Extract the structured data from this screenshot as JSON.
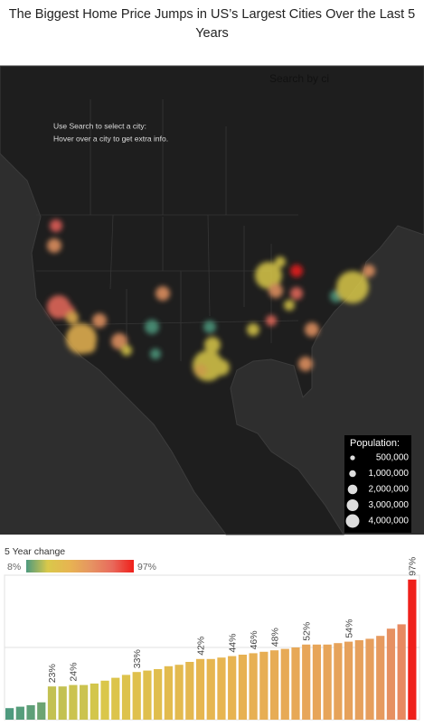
{
  "title": "The Biggest Home Price Jumps in US’s Largest Cities Over the Last 5 Years",
  "map": {
    "search_placeholder": "Search by ci",
    "instructions": [
      "Use Search to select a city:",
      "Hover over a city to get extra info."
    ],
    "population_legend": {
      "title": "Population:",
      "items": [
        {
          "value": 500000,
          "label": "500,000"
        },
        {
          "value": 1000000,
          "label": "1,000,000"
        },
        {
          "value": 2000000,
          "label": "2,000,000"
        },
        {
          "value": 3000000,
          "label": "3,000,000"
        },
        {
          "value": 4000000,
          "label": "4,000,000"
        }
      ]
    }
  },
  "chart_data": {
    "type": "bar",
    "legend_title": "5 Year change",
    "color_scale": {
      "colors": [
        "#4e9a7e",
        "#d9c84a",
        "#e7b451",
        "#e69462",
        "#e86a5c",
        "#ef1f1a"
      ],
      "min": {
        "value": 8,
        "label": "8%"
      },
      "max": {
        "value": 97,
        "label": "97%"
      }
    },
    "values": [
      8,
      9,
      10,
      12,
      23,
      23,
      24,
      24,
      25,
      27,
      29,
      31,
      33,
      34,
      35,
      37,
      38,
      40,
      42,
      42,
      43,
      44,
      45,
      46,
      47,
      48,
      49,
      50,
      52,
      52,
      52,
      53,
      54,
      55,
      56,
      58,
      63,
      66,
      97
    ],
    "value_labels": [
      null,
      null,
      null,
      null,
      "23%",
      null,
      "24%",
      null,
      null,
      null,
      null,
      null,
      "33%",
      null,
      null,
      null,
      null,
      null,
      "42%",
      null,
      null,
      "44%",
      null,
      "46%",
      null,
      "48%",
      null,
      null,
      "52%",
      null,
      null,
      null,
      "54%",
      null,
      null,
      null,
      null,
      null,
      "97%"
    ],
    "ylim": [
      0,
      100
    ],
    "gridlines": [
      50,
      100
    ]
  }
}
